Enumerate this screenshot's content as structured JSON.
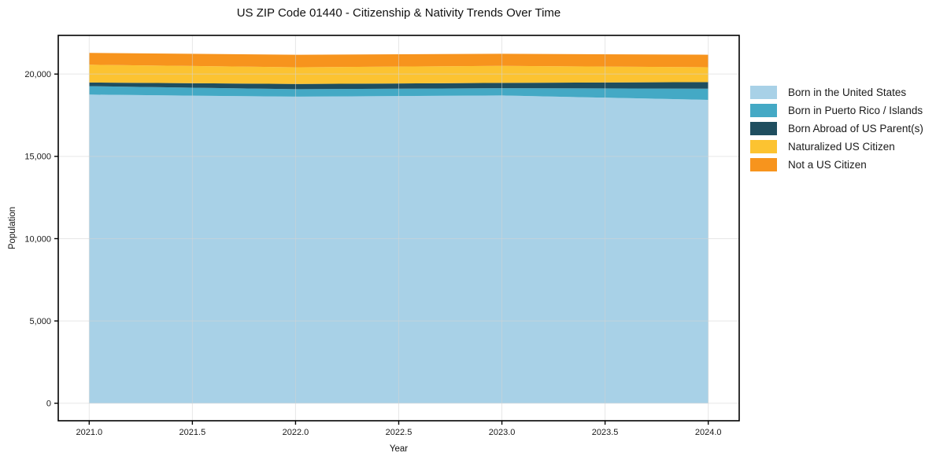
{
  "title": "US ZIP Code 01440 - Citizenship & Nativity Trends Over Time",
  "chart_data": {
    "type": "area",
    "stacked": true,
    "title": "US ZIP Code 01440 - Citizenship & Nativity Trends Over Time",
    "xlabel": "Year",
    "ylabel": "Population",
    "x": [
      2021,
      2022,
      2023,
      2024
    ],
    "series": [
      {
        "id": "born-us",
        "name": "Born in the United States",
        "color": "#a8d1e7",
        "values": [
          18750,
          18630,
          18700,
          18430
        ]
      },
      {
        "id": "born-pr-islands",
        "name": "Born in Puerto Rico / Islands",
        "color": "#44a9c5",
        "values": [
          520,
          450,
          445,
          680
        ]
      },
      {
        "id": "born-abroad",
        "name": "Born Abroad of US Parent(s)",
        "color": "#1f4e5f",
        "values": [
          220,
          315,
          320,
          400
        ]
      },
      {
        "id": "naturalized",
        "name": "Naturalized US Citizen",
        "color": "#fcc331",
        "values": [
          1080,
          1020,
          1030,
          905
        ]
      },
      {
        "id": "not-citizen",
        "name": "Not a US Citizen",
        "color": "#f7941d",
        "values": [
          715,
          760,
          735,
          760
        ]
      }
    ],
    "xlim": [
      2020.85,
      2024.15
    ],
    "ylim": [
      -1064,
      22350
    ],
    "xticks": [
      {
        "value": 2021.0,
        "label": "2021.0"
      },
      {
        "value": 2021.5,
        "label": "2021.5"
      },
      {
        "value": 2022.0,
        "label": "2022.0"
      },
      {
        "value": 2022.5,
        "label": "2022.5"
      },
      {
        "value": 2023.0,
        "label": "2023.0"
      },
      {
        "value": 2023.5,
        "label": "2023.5"
      },
      {
        "value": 2024.0,
        "label": "2024.0"
      }
    ],
    "yticks": [
      {
        "value": 0,
        "label": "0"
      },
      {
        "value": 5000,
        "label": "5,000"
      },
      {
        "value": 10000,
        "label": "10,000"
      },
      {
        "value": 15000,
        "label": "15,000"
      },
      {
        "value": 20000,
        "label": "20,000"
      }
    ],
    "grid": true,
    "grid_color": "#d3d3d3",
    "axis_color": "#000000",
    "tick_label_color": "#1a1a1a",
    "legend_position": "right-outside"
  }
}
